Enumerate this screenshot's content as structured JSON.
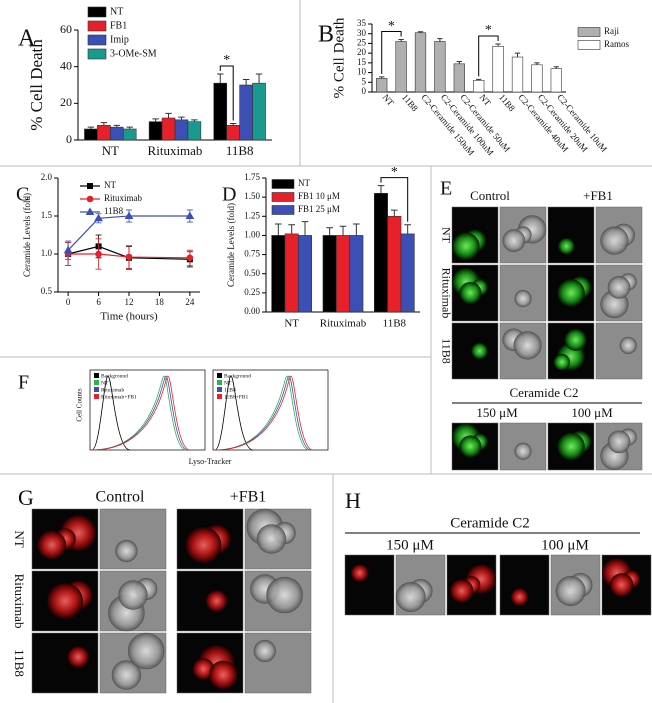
{
  "chart_data": [
    {
      "panel": "A",
      "type": "bar",
      "y_label": "% Cell Death",
      "categories": [
        "NT",
        "Rituximab",
        "11B8"
      ],
      "series": [
        {
          "name": "NT",
          "color": "#000000",
          "values": [
            6,
            10,
            31
          ],
          "errors": [
            1,
            1.5,
            5
          ]
        },
        {
          "name": "FB1",
          "color": "#e8202a",
          "values": [
            8,
            12,
            8
          ],
          "errors": [
            1.5,
            2.5,
            1
          ]
        },
        {
          "name": "Imip",
          "color": "#3b4fb5",
          "values": [
            7,
            11,
            30
          ],
          "errors": [
            1,
            1.5,
            3
          ]
        },
        {
          "name": "3-OMe-SM",
          "color": "#1a9a8e",
          "values": [
            6,
            10,
            31
          ],
          "errors": [
            1,
            1,
            5
          ]
        }
      ],
      "ylim": [
        0,
        60
      ],
      "yticks": [
        0,
        20,
        40,
        60
      ],
      "annotations": [
        "*"
      ]
    },
    {
      "panel": "B",
      "type": "bar",
      "y_label": "% Cell Death",
      "categories": [
        "NT",
        "11B8",
        "C2-Ceramide 150uM",
        "C2-Ceramide 100uM",
        "C2-Ceramide 50uM",
        "NT",
        "11B8",
        "C2-Ceramide 40uM",
        "C2-Ceramide 20uM",
        "C2-Ceramide 10uM"
      ],
      "series": [
        {
          "name": "Raji",
          "color": "#b0b0b0",
          "values": [
            7,
            26,
            30.5,
            26,
            14.5,
            null,
            null,
            null,
            null,
            null
          ],
          "errors": [
            0.8,
            1,
            0.5,
            1.5,
            1.2,
            null,
            null,
            null,
            null,
            null
          ]
        },
        {
          "name": "Ramos",
          "color": "#ffffff",
          "values": [
            null,
            null,
            null,
            null,
            null,
            6,
            23.5,
            18,
            14,
            12
          ],
          "errors": [
            null,
            null,
            null,
            null,
            null,
            0.5,
            1.2,
            2,
            1,
            1
          ]
        }
      ],
      "ylim": [
        0,
        35
      ],
      "yticks": [
        0,
        5,
        10,
        15,
        20,
        25,
        30,
        35
      ],
      "annotations": [
        "*",
        "*"
      ]
    },
    {
      "panel": "C",
      "type": "line",
      "x_label": "Time (hours)",
      "y_label": "Ceramide Levels (fold)",
      "x": [
        0,
        6,
        12,
        24
      ],
      "xlim": [
        -2,
        26
      ],
      "xticks": [
        0,
        6,
        12,
        18,
        24
      ],
      "series": [
        {
          "name": "NT",
          "color": "#000000",
          "marker": "square",
          "values": [
            1.0,
            1.1,
            0.95,
            0.93
          ],
          "errors": [
            0.15,
            0.15,
            0.15,
            0.1
          ]
        },
        {
          "name": "Rituximab",
          "color": "#e8202a",
          "marker": "circle",
          "values": [
            1.0,
            1.0,
            0.96,
            0.95
          ],
          "errors": [
            0.15,
            0.2,
            0.15,
            0.1
          ]
        },
        {
          "name": "11B8",
          "color": "#3b4fb5",
          "marker": "triangle",
          "values": [
            1.05,
            1.47,
            1.5,
            1.5
          ],
          "errors": [
            0.12,
            0.06,
            0.08,
            0.08
          ]
        }
      ],
      "ylim": [
        0.5,
        2.0
      ],
      "yticks": [
        0.5,
        {
          "value": 1.0,
          "label": "1.0"
        },
        1.5,
        {
          "value": 2.0,
          "label": "2.0"
        }
      ]
    },
    {
      "panel": "D",
      "type": "bar",
      "y_label": "Ceramide Levels (fold)",
      "categories": [
        "NT",
        "Rituximab",
        "11B8"
      ],
      "series": [
        {
          "name": "NT",
          "color": "#000000",
          "values": [
            1.0,
            1.0,
            1.55
          ],
          "errors": [
            0.15,
            0.1,
            0.1
          ]
        },
        {
          "name": "FB1 10 μM",
          "color": "#e8202a",
          "values": [
            1.02,
            1.0,
            1.25
          ],
          "errors": [
            0.12,
            0.12,
            0.08
          ]
        },
        {
          "name": "FB1 25 μM",
          "color": "#3b4fb5",
          "values": [
            1.0,
            1.0,
            1.02
          ],
          "errors": [
            0.18,
            0.15,
            0.12
          ]
        }
      ],
      "ylim": [
        0,
        1.75
      ],
      "yticks": [
        {
          "value": 0,
          "label": "0.00"
        },
        0.25,
        {
          "value": 0.5,
          "label": "0.50"
        },
        0.75,
        {
          "value": 1.0,
          "label": "1.00"
        },
        1.25,
        {
          "value": 1.5,
          "label": "1.50"
        },
        1.75
      ],
      "annotations": [
        "*"
      ]
    }
  ],
  "image_panels": {
    "E": {
      "panel": "E",
      "column_labels": [
        "Control",
        "+FB1"
      ],
      "row_labels": [
        "NT",
        "Rituximab",
        "11B8"
      ],
      "subtitle": "Ceramide C2",
      "sub_labels": [
        "150 μM",
        "100 μM"
      ]
    },
    "F": {
      "panel": "F",
      "y_label": "Cell Counts",
      "x_label": "Lyso-Tracker",
      "legends": [
        [
          "Background",
          "NT",
          "Rituximab",
          "Rituximab+FB1"
        ],
        [
          "Background",
          "NT",
          "11B8",
          "11B8+FB1"
        ]
      ]
    },
    "G": {
      "panel": "G",
      "column_labels": [
        "Control",
        "+FB1"
      ],
      "row_labels": [
        "NT",
        "Rituximab",
        "11B8"
      ]
    },
    "H": {
      "panel": "H",
      "subtitle": "Ceramide C2",
      "sub_labels": [
        "150 μM",
        "100 μM"
      ]
    }
  }
}
